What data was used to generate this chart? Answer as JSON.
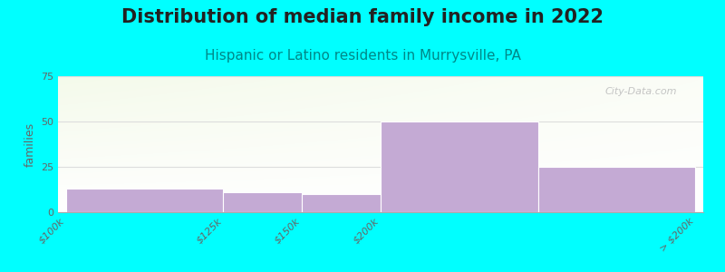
{
  "title": "Distribution of median family income in 2022",
  "subtitle": "Hispanic or Latino residents in Murrysville, PA",
  "background_color": "#00FFFF",
  "plot_bg_color_topleft": "#e8f5e0",
  "plot_bg_color_topright": "#f8f8f5",
  "plot_bg_color_bottom": "#ffffff",
  "bar_color": "#c4aad4",
  "categories": [
    "$100k",
    "$125k",
    "$150k",
    "$200k",
    "> $200k"
  ],
  "values": [
    13,
    11,
    10,
    50,
    25
  ],
  "bar_lefts": [
    0.0,
    1.0,
    1.5,
    2.0,
    3.0
  ],
  "bar_rights": [
    1.0,
    1.5,
    2.0,
    3.0,
    4.0
  ],
  "tick_positions": [
    0.0,
    1.0,
    1.5,
    2.0,
    3.0,
    4.0
  ],
  "tick_labels": [
    "$100k",
    "$125k",
    "$150k",
    "$200k",
    "> $200k"
  ],
  "ylabel": "families",
  "ylim": [
    0,
    75
  ],
  "yticks": [
    0,
    25,
    50,
    75
  ],
  "grid_color": "#dddddd",
  "title_fontsize": 15,
  "subtitle_fontsize": 11,
  "subtitle_color": "#008888",
  "ylabel_fontsize": 9,
  "tick_label_fontsize": 8,
  "watermark": "City-Data.com"
}
